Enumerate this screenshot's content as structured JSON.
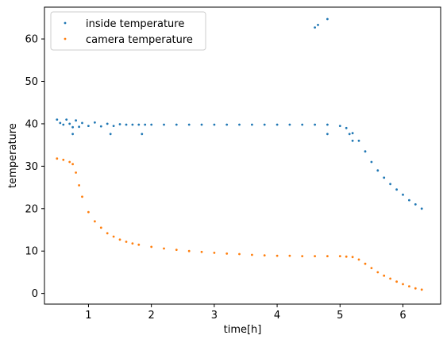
{
  "chart_data": {
    "type": "scatter",
    "xlabel": "time[h]",
    "ylabel": "temperature",
    "xlim": [
      0.3,
      6.6
    ],
    "ylim": [
      -2.5,
      67.5
    ],
    "xticks": [
      1,
      2,
      3,
      4,
      5,
      6
    ],
    "xtick_labels": [
      "1",
      "2",
      "3",
      "4",
      "5",
      "6"
    ],
    "yticks": [
      0,
      10,
      20,
      30,
      40,
      50,
      60
    ],
    "ytick_labels": [
      "0",
      "10",
      "20",
      "30",
      "40",
      "50",
      "60"
    ],
    "grid": false,
    "legend_position": "top-left",
    "series": [
      {
        "name": "inside temperature",
        "color": "#1f77b4",
        "x": [
          0.5,
          0.55,
          0.6,
          0.65,
          0.7,
          0.75,
          0.8,
          0.85,
          0.9,
          1.0,
          1.1,
          1.2,
          1.3,
          1.4,
          1.5,
          1.6,
          1.7,
          1.8,
          1.9,
          2.0,
          2.2,
          2.4,
          2.6,
          2.8,
          3.0,
          3.2,
          3.4,
          3.6,
          3.8,
          4.0,
          4.2,
          4.4,
          4.6,
          4.8,
          5.0,
          5.1,
          5.2,
          5.3,
          5.4,
          5.5,
          5.6,
          5.7,
          5.8,
          5.9,
          6.0,
          6.1,
          6.2,
          6.3,
          0.75,
          1.35,
          1.85,
          4.8,
          5.15,
          5.2,
          4.6,
          4.65,
          4.8
        ],
        "y": [
          41.0,
          40.2,
          39.8,
          41.0,
          40.0,
          39.2,
          40.8,
          39.3,
          40.2,
          39.5,
          40.3,
          39.4,
          40.0,
          39.5,
          39.9,
          39.8,
          39.8,
          39.8,
          39.8,
          39.8,
          39.8,
          39.8,
          39.8,
          39.8,
          39.8,
          39.8,
          39.8,
          39.8,
          39.8,
          39.8,
          39.8,
          39.8,
          39.8,
          39.8,
          39.5,
          39.0,
          37.8,
          36.0,
          33.5,
          31.0,
          29.0,
          27.3,
          25.8,
          24.5,
          23.3,
          22.0,
          21.0,
          20.0,
          37.6,
          37.6,
          37.6,
          37.6,
          37.6,
          36.0,
          62.7,
          63.3,
          64.7
        ]
      },
      {
        "name": "camera temperature",
        "color": "#ff7f0e",
        "x": [
          0.5,
          0.6,
          0.7,
          0.75,
          0.8,
          0.85,
          0.9,
          1.0,
          1.1,
          1.2,
          1.3,
          1.4,
          1.5,
          1.6,
          1.7,
          1.8,
          2.0,
          2.2,
          2.4,
          2.6,
          2.8,
          3.0,
          3.2,
          3.4,
          3.6,
          3.8,
          4.0,
          4.2,
          4.4,
          4.6,
          4.8,
          5.0,
          5.1,
          5.2,
          5.3,
          5.4,
          5.5,
          5.6,
          5.7,
          5.8,
          5.9,
          6.0,
          6.1,
          6.2,
          6.3
        ],
        "y": [
          31.8,
          31.5,
          31.0,
          30.5,
          28.5,
          25.5,
          22.8,
          19.2,
          17.0,
          15.5,
          14.2,
          13.4,
          12.7,
          12.2,
          11.8,
          11.5,
          11.0,
          10.6,
          10.3,
          10.0,
          9.8,
          9.6,
          9.4,
          9.3,
          9.1,
          9.0,
          8.9,
          8.9,
          8.8,
          8.8,
          8.8,
          8.8,
          8.7,
          8.6,
          8.0,
          7.0,
          6.0,
          5.0,
          4.2,
          3.5,
          2.8,
          2.2,
          1.7,
          1.2,
          0.9
        ]
      }
    ]
  }
}
